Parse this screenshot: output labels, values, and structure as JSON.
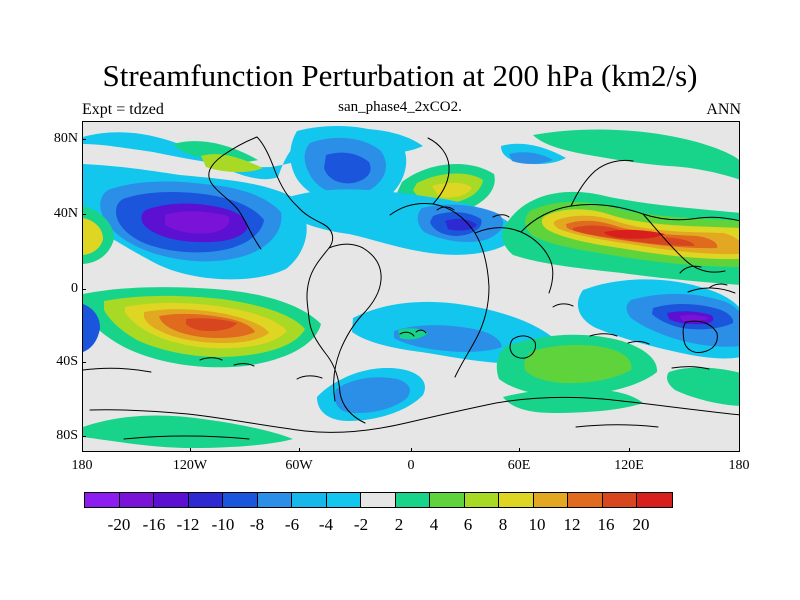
{
  "header": {
    "title": "Streamfunction Perturbation at 200 hPa (km2/s)",
    "subtitle": "san_phase4_2xCO2.",
    "left_label": "Expt = tdzed",
    "right_label": "ANN"
  },
  "map": {
    "background": "#e6e6e6",
    "coast_color": "#000000",
    "latitudes": [
      "80N",
      "40N",
      "0",
      "40S",
      "80S"
    ],
    "longitudes": [
      "180",
      "120W",
      "60W",
      "0",
      "60E",
      "120E",
      "180"
    ],
    "features": [
      {
        "type": "region",
        "name": "north-pacific-negative-core",
        "value": -20,
        "color": "#7a12d8"
      },
      {
        "type": "region",
        "name": "south-pacific-positive-core",
        "value": 20,
        "color": "#d8461f"
      },
      {
        "type": "region",
        "name": "asia-positive-core",
        "value": 20,
        "color": "#d8461f"
      },
      {
        "type": "region",
        "name": "western-pacific-negative-core",
        "value": -16,
        "color": "#7a12d8"
      }
    ]
  },
  "colorbar": {
    "colors": [
      "#8d1cf0",
      "#7a12d8",
      "#5b10d2",
      "#2f29d2",
      "#1a55dc",
      "#2b8fe8",
      "#16b7ea",
      "#12c6ee",
      "#e6e6e6",
      "#18d48a",
      "#5ed33c",
      "#a8d924",
      "#dfd623",
      "#e3a821",
      "#e06a1e",
      "#d8461f",
      "#d91e1e"
    ],
    "labels": [
      "-20",
      "-16",
      "-12",
      "-10",
      "-8",
      "-6",
      "-4",
      "-2",
      "2",
      "4",
      "6",
      "8",
      "10",
      "12",
      "16",
      "20"
    ]
  }
}
